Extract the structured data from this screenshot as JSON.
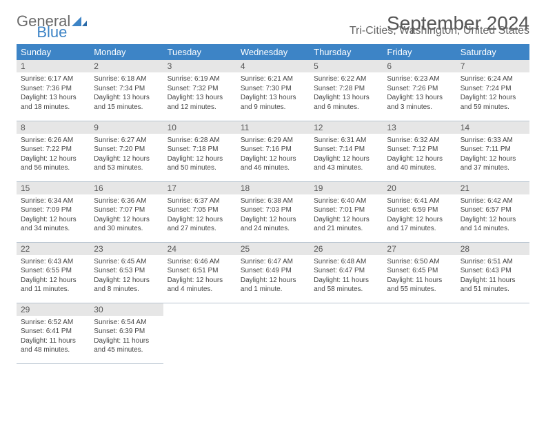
{
  "logo": {
    "word1": "General",
    "word2": "Blue"
  },
  "title": "September 2024",
  "subtitle": "Tri-Cities, Washington, United States",
  "colors": {
    "header_bg": "#3d84c6",
    "header_text": "#ffffff",
    "daynum_bg": "#e6e6e6",
    "border": "#b8c4d0",
    "body_text": "#444444",
    "title_text": "#555555"
  },
  "days_of_week": [
    "Sunday",
    "Monday",
    "Tuesday",
    "Wednesday",
    "Thursday",
    "Friday",
    "Saturday"
  ],
  "weeks": [
    [
      {
        "n": "1",
        "sunrise": "Sunrise: 6:17 AM",
        "sunset": "Sunset: 7:36 PM",
        "day1": "Daylight: 13 hours",
        "day2": "and 18 minutes."
      },
      {
        "n": "2",
        "sunrise": "Sunrise: 6:18 AM",
        "sunset": "Sunset: 7:34 PM",
        "day1": "Daylight: 13 hours",
        "day2": "and 15 minutes."
      },
      {
        "n": "3",
        "sunrise": "Sunrise: 6:19 AM",
        "sunset": "Sunset: 7:32 PM",
        "day1": "Daylight: 13 hours",
        "day2": "and 12 minutes."
      },
      {
        "n": "4",
        "sunrise": "Sunrise: 6:21 AM",
        "sunset": "Sunset: 7:30 PM",
        "day1": "Daylight: 13 hours",
        "day2": "and 9 minutes."
      },
      {
        "n": "5",
        "sunrise": "Sunrise: 6:22 AM",
        "sunset": "Sunset: 7:28 PM",
        "day1": "Daylight: 13 hours",
        "day2": "and 6 minutes."
      },
      {
        "n": "6",
        "sunrise": "Sunrise: 6:23 AM",
        "sunset": "Sunset: 7:26 PM",
        "day1": "Daylight: 13 hours",
        "day2": "and 3 minutes."
      },
      {
        "n": "7",
        "sunrise": "Sunrise: 6:24 AM",
        "sunset": "Sunset: 7:24 PM",
        "day1": "Daylight: 12 hours",
        "day2": "and 59 minutes."
      }
    ],
    [
      {
        "n": "8",
        "sunrise": "Sunrise: 6:26 AM",
        "sunset": "Sunset: 7:22 PM",
        "day1": "Daylight: 12 hours",
        "day2": "and 56 minutes."
      },
      {
        "n": "9",
        "sunrise": "Sunrise: 6:27 AM",
        "sunset": "Sunset: 7:20 PM",
        "day1": "Daylight: 12 hours",
        "day2": "and 53 minutes."
      },
      {
        "n": "10",
        "sunrise": "Sunrise: 6:28 AM",
        "sunset": "Sunset: 7:18 PM",
        "day1": "Daylight: 12 hours",
        "day2": "and 50 minutes."
      },
      {
        "n": "11",
        "sunrise": "Sunrise: 6:29 AM",
        "sunset": "Sunset: 7:16 PM",
        "day1": "Daylight: 12 hours",
        "day2": "and 46 minutes."
      },
      {
        "n": "12",
        "sunrise": "Sunrise: 6:31 AM",
        "sunset": "Sunset: 7:14 PM",
        "day1": "Daylight: 12 hours",
        "day2": "and 43 minutes."
      },
      {
        "n": "13",
        "sunrise": "Sunrise: 6:32 AM",
        "sunset": "Sunset: 7:12 PM",
        "day1": "Daylight: 12 hours",
        "day2": "and 40 minutes."
      },
      {
        "n": "14",
        "sunrise": "Sunrise: 6:33 AM",
        "sunset": "Sunset: 7:11 PM",
        "day1": "Daylight: 12 hours",
        "day2": "and 37 minutes."
      }
    ],
    [
      {
        "n": "15",
        "sunrise": "Sunrise: 6:34 AM",
        "sunset": "Sunset: 7:09 PM",
        "day1": "Daylight: 12 hours",
        "day2": "and 34 minutes."
      },
      {
        "n": "16",
        "sunrise": "Sunrise: 6:36 AM",
        "sunset": "Sunset: 7:07 PM",
        "day1": "Daylight: 12 hours",
        "day2": "and 30 minutes."
      },
      {
        "n": "17",
        "sunrise": "Sunrise: 6:37 AM",
        "sunset": "Sunset: 7:05 PM",
        "day1": "Daylight: 12 hours",
        "day2": "and 27 minutes."
      },
      {
        "n": "18",
        "sunrise": "Sunrise: 6:38 AM",
        "sunset": "Sunset: 7:03 PM",
        "day1": "Daylight: 12 hours",
        "day2": "and 24 minutes."
      },
      {
        "n": "19",
        "sunrise": "Sunrise: 6:40 AM",
        "sunset": "Sunset: 7:01 PM",
        "day1": "Daylight: 12 hours",
        "day2": "and 21 minutes."
      },
      {
        "n": "20",
        "sunrise": "Sunrise: 6:41 AM",
        "sunset": "Sunset: 6:59 PM",
        "day1": "Daylight: 12 hours",
        "day2": "and 17 minutes."
      },
      {
        "n": "21",
        "sunrise": "Sunrise: 6:42 AM",
        "sunset": "Sunset: 6:57 PM",
        "day1": "Daylight: 12 hours",
        "day2": "and 14 minutes."
      }
    ],
    [
      {
        "n": "22",
        "sunrise": "Sunrise: 6:43 AM",
        "sunset": "Sunset: 6:55 PM",
        "day1": "Daylight: 12 hours",
        "day2": "and 11 minutes."
      },
      {
        "n": "23",
        "sunrise": "Sunrise: 6:45 AM",
        "sunset": "Sunset: 6:53 PM",
        "day1": "Daylight: 12 hours",
        "day2": "and 8 minutes."
      },
      {
        "n": "24",
        "sunrise": "Sunrise: 6:46 AM",
        "sunset": "Sunset: 6:51 PM",
        "day1": "Daylight: 12 hours",
        "day2": "and 4 minutes."
      },
      {
        "n": "25",
        "sunrise": "Sunrise: 6:47 AM",
        "sunset": "Sunset: 6:49 PM",
        "day1": "Daylight: 12 hours",
        "day2": "and 1 minute."
      },
      {
        "n": "26",
        "sunrise": "Sunrise: 6:48 AM",
        "sunset": "Sunset: 6:47 PM",
        "day1": "Daylight: 11 hours",
        "day2": "and 58 minutes."
      },
      {
        "n": "27",
        "sunrise": "Sunrise: 6:50 AM",
        "sunset": "Sunset: 6:45 PM",
        "day1": "Daylight: 11 hours",
        "day2": "and 55 minutes."
      },
      {
        "n": "28",
        "sunrise": "Sunrise: 6:51 AM",
        "sunset": "Sunset: 6:43 PM",
        "day1": "Daylight: 11 hours",
        "day2": "and 51 minutes."
      }
    ],
    [
      {
        "n": "29",
        "sunrise": "Sunrise: 6:52 AM",
        "sunset": "Sunset: 6:41 PM",
        "day1": "Daylight: 11 hours",
        "day2": "and 48 minutes."
      },
      {
        "n": "30",
        "sunrise": "Sunrise: 6:54 AM",
        "sunset": "Sunset: 6:39 PM",
        "day1": "Daylight: 11 hours",
        "day2": "and 45 minutes."
      },
      null,
      null,
      null,
      null,
      null
    ]
  ]
}
